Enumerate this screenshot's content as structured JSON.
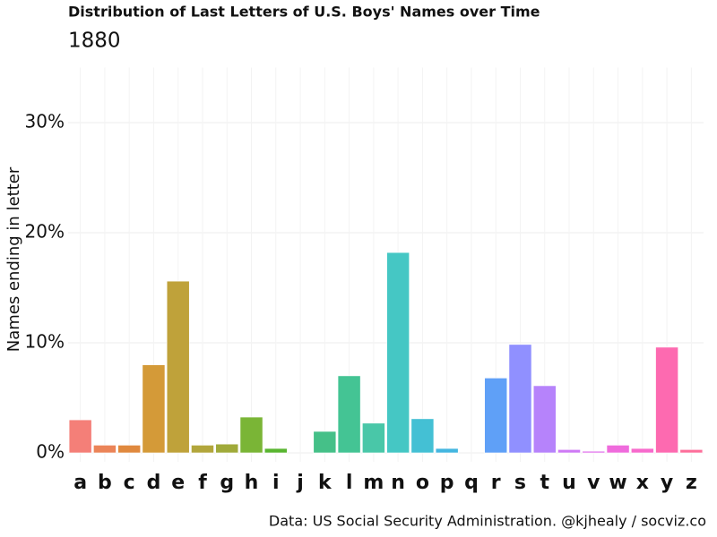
{
  "chart_data": {
    "type": "bar",
    "title": "Distribution of Last Letters of U.S. Boys' Names over Time",
    "subtitle": "1880",
    "y_label": "Names ending in letter",
    "caption": "Data: US Social Security Administration. @kjhealy / socviz.co",
    "categories": [
      "a",
      "b",
      "c",
      "d",
      "e",
      "f",
      "g",
      "h",
      "i",
      "j",
      "k",
      "l",
      "m",
      "n",
      "o",
      "p",
      "q",
      "r",
      "s",
      "t",
      "u",
      "v",
      "w",
      "x",
      "y",
      "z"
    ],
    "values": [
      3.0,
      0.7,
      0.7,
      8.0,
      15.6,
      0.7,
      0.8,
      3.25,
      0.4,
      0,
      1.95,
      7.0,
      2.7,
      18.2,
      3.1,
      0.4,
      0,
      6.8,
      9.85,
      6.1,
      0.3,
      0.15,
      0.7,
      0.4,
      9.6,
      0.3
    ],
    "colors": [
      "#F47F78",
      "#EB8458",
      "#E0893E",
      "#D49A38",
      "#BFA23A",
      "#B2A63C",
      "#A0AA3A",
      "#7AB536",
      "#59B530",
      "#3AB847",
      "#45C088",
      "#44C494",
      "#49C7A8",
      "#45C7C4",
      "#44C0D4",
      "#44B6E0",
      "#4FA7EE",
      "#5FA0F7",
      "#9090FF",
      "#B683FB",
      "#CE79F5",
      "#E070EC",
      "#EF6BDC",
      "#F76ACC",
      "#FD6AB0",
      "#FD6E9A"
    ],
    "ylim": [
      0,
      35
    ],
    "yticks": [
      {
        "value": 0,
        "label": "0%"
      },
      {
        "value": 10,
        "label": "10%"
      },
      {
        "value": 20,
        "label": "20%"
      },
      {
        "value": 30,
        "label": "30%"
      }
    ],
    "grid": true
  }
}
